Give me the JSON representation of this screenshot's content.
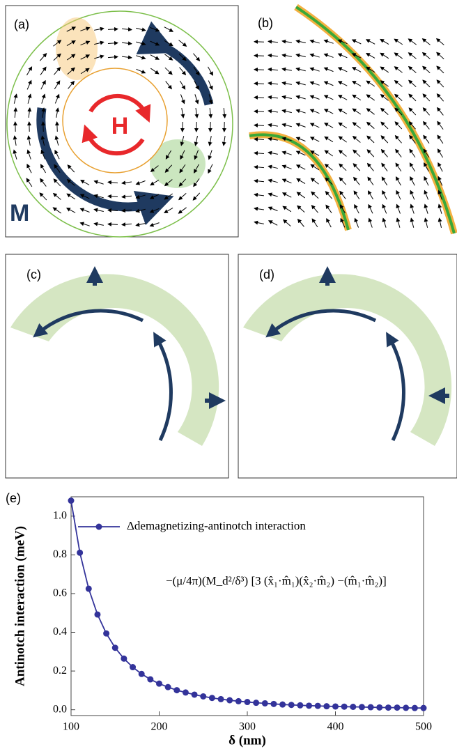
{
  "panels": {
    "a": {
      "label": "(a)",
      "field_label": "H",
      "magnetization_label": "M"
    },
    "b": {
      "label": "(b)"
    },
    "c": {
      "label": "(c)"
    },
    "d": {
      "label": "(d)"
    }
  },
  "chart_data": {
    "type": "line",
    "panel_label": "(e)",
    "x_label": "δ (nm)",
    "y_label": "Antinotch interaction (meV)",
    "annotation": "−(μ/4π)(M_d²/δ³) [3 (x̂₁·m̂₁)(x̂₂·m̂₂) −(m̂₁·m̂₂)]",
    "x": [
      100,
      110,
      120,
      130,
      140,
      150,
      160,
      170,
      180,
      190,
      200,
      210,
      220,
      230,
      240,
      250,
      260,
      270,
      280,
      290,
      300,
      310,
      320,
      330,
      340,
      350,
      360,
      370,
      380,
      390,
      400,
      410,
      420,
      430,
      440,
      450,
      460,
      470,
      480,
      490,
      500
    ],
    "series": [
      {
        "name": "Δdemagnetizing-antinotch interaction",
        "color": "#33339a",
        "values": [
          1.08,
          0.811,
          0.625,
          0.492,
          0.394,
          0.32,
          0.264,
          0.22,
          0.185,
          0.157,
          0.135,
          0.117,
          0.101,
          0.089,
          0.078,
          0.069,
          0.061,
          0.055,
          0.049,
          0.044,
          0.04,
          0.036,
          0.033,
          0.03,
          0.027,
          0.025,
          0.023,
          0.021,
          0.02,
          0.018,
          0.017,
          0.016,
          0.015,
          0.014,
          0.013,
          0.012,
          0.011,
          0.011,
          0.01,
          0.009,
          0.009
        ]
      }
    ],
    "xlim": [
      100,
      500
    ],
    "xticks": [
      100,
      200,
      300,
      400,
      500
    ],
    "ylim": [
      -0.03,
      1.1
    ],
    "yticks": [
      {
        "value": 0,
        "label": "0.0"
      },
      0.2,
      0.4,
      0.6,
      0.8,
      {
        "value": 1,
        "label": "1.0"
      }
    ],
    "markers": true
  }
}
